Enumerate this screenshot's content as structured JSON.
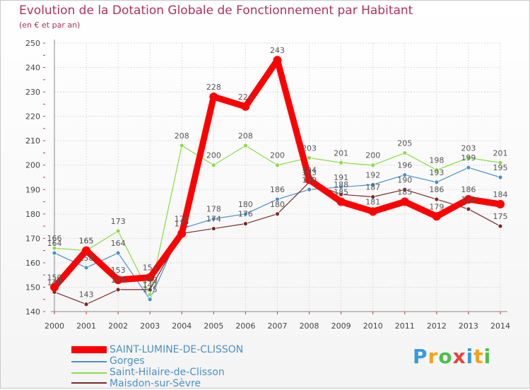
{
  "title": "Evolution de la Dotation Globale de Fonctionnement par Habitant",
  "subtitle": "(en € et par an)",
  "brand": "Proxiti",
  "chart_data": {
    "type": "line",
    "title": "Evolution de la Dotation Globale de Fonctionnement par Habitant",
    "ylabel": "(en € et par an)",
    "xlabel": "",
    "categories": [
      "2000",
      "2001",
      "2002",
      "2003",
      "2004",
      "2005",
      "2006",
      "2007",
      "2008",
      "2009",
      "2010",
      "2011",
      "2012",
      "2013",
      "2014"
    ],
    "ylim": [
      140,
      250
    ],
    "yticks": [
      140,
      150,
      160,
      170,
      180,
      190,
      200,
      210,
      220,
      230,
      240,
      250
    ],
    "grid": true,
    "series": [
      {
        "name": "SAINT-LUMINE-DE-CLISSON",
        "color": "#ff0000",
        "values": [
          150,
          165,
          153,
          154,
          172,
          228,
          224,
          243,
          194,
          185,
          181,
          185,
          179,
          186,
          184
        ]
      },
      {
        "name": "Gorges",
        "color": "#4a90c8",
        "values": [
          164,
          158,
          164,
          145,
          174,
          178,
          180,
          186,
          190,
          191,
          192,
          196,
          193,
          199,
          195
        ]
      },
      {
        "name": "Saint-Hilaire-de-Clisson",
        "color": "#88dd44",
        "values": [
          166,
          165,
          173,
          147,
          208,
          200,
          208,
          200,
          203,
          201,
          200,
          205,
          198,
          203,
          201
        ]
      },
      {
        "name": "Maisdon-sur-Sèvre",
        "color": "#7a2a2a",
        "values": [
          148,
          143,
          149,
          149,
          172,
          174,
          176,
          180,
          193,
          188,
          187,
          190,
          186,
          182,
          175
        ]
      }
    ]
  }
}
